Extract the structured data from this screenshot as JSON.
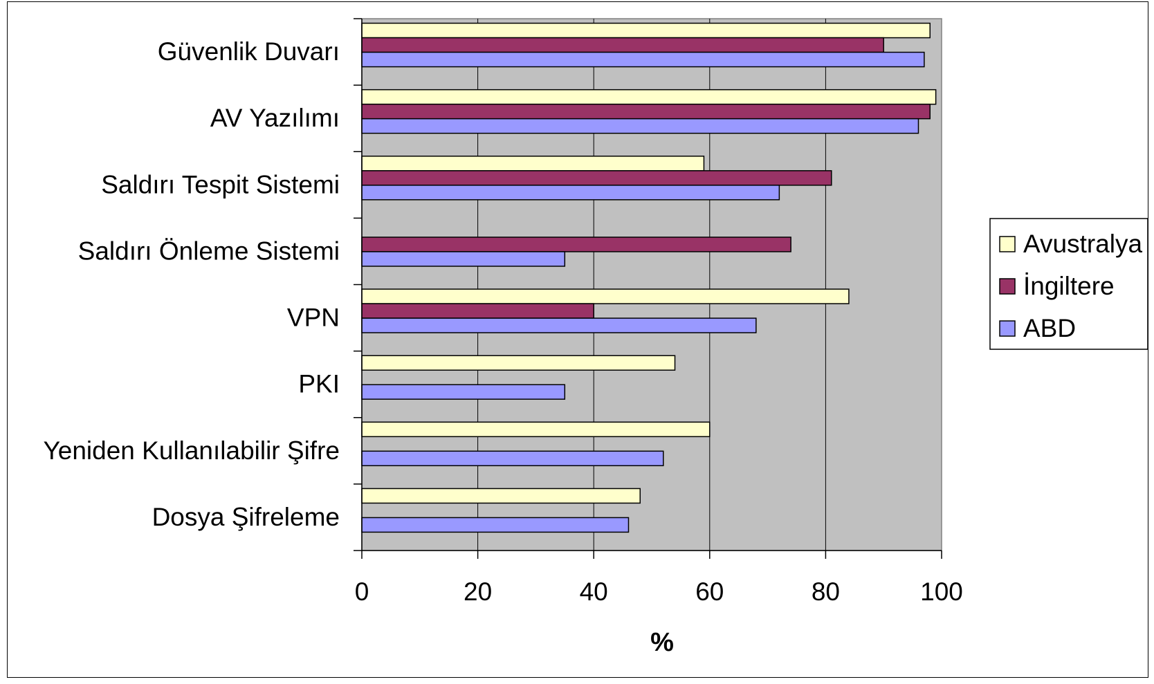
{
  "chart_data": {
    "type": "bar",
    "orientation": "horizontal",
    "categories": [
      "Güvenlik Duvarı",
      "AV Yazılımı",
      "Saldırı Tespit Sistemi",
      "Saldırı Önleme Sistemi",
      "VPN",
      "PKI",
      "Yeniden Kullanılabilir Şifre",
      "Dosya Şifreleme"
    ],
    "series": [
      {
        "name": "Avustralya",
        "color": "#FFFFCC",
        "values": [
          98,
          99,
          59,
          null,
          84,
          54,
          60,
          48
        ]
      },
      {
        "name": "İngiltere",
        "color": "#993366",
        "values": [
          90,
          98,
          81,
          74,
          40,
          null,
          null,
          null
        ]
      },
      {
        "name": "ABD",
        "color": "#9999FF",
        "values": [
          97,
          96,
          72,
          35,
          68,
          35,
          52,
          46
        ]
      }
    ],
    "xlabel": "%",
    "xlim": [
      0,
      100
    ],
    "x_ticks": [
      "0",
      "20",
      "40",
      "60",
      "80",
      "100"
    ],
    "plot_background": "#C0C0C0",
    "grid": true,
    "legend_position": "right"
  }
}
